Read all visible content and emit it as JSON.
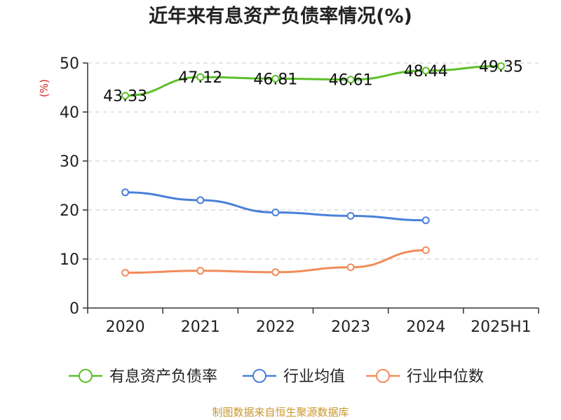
{
  "colors": {
    "series": [
      "#5cbf2a",
      "#4a80d8",
      "#f28c5a"
    ],
    "unit": "#d62020",
    "source": "#c9962a"
  },
  "chart_data": {
    "type": "line",
    "title": "近年来有息资产负债率情况(%)",
    "y_unit": "(%)",
    "categories": [
      "2020",
      "2021",
      "2022",
      "2023",
      "2024",
      "2025H1"
    ],
    "y_ticks": [
      "0",
      "10",
      "20",
      "30",
      "40",
      "50"
    ],
    "ylim": [
      0,
      50
    ],
    "grid": true,
    "legend_position": "bottom",
    "series": [
      {
        "name": "有息资产负债率",
        "values": [
          43.33,
          47.12,
          46.81,
          46.61,
          48.44,
          49.35
        ],
        "labels": [
          "43.33",
          "47.12",
          "46.81",
          "46.61",
          "48.44",
          "49.35"
        ]
      },
      {
        "name": "行业均值",
        "values": [
          23.6,
          22.0,
          19.5,
          18.8,
          17.9,
          null
        ]
      },
      {
        "name": "行业中位数",
        "values": [
          7.2,
          7.6,
          7.3,
          8.3,
          11.8,
          null
        ]
      }
    ],
    "source": "制图数据来自恒生聚源数据库"
  }
}
